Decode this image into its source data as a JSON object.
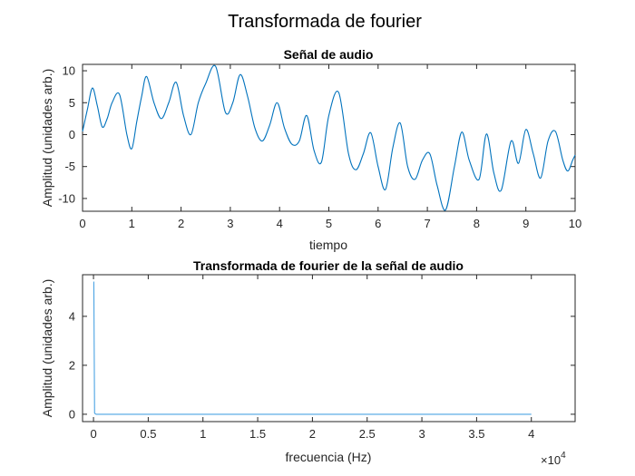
{
  "figure": {
    "suptitle": "Transformada de fourier"
  },
  "chart_data": [
    {
      "type": "line",
      "title": "Señal de audio",
      "xlabel": "tiempo",
      "ylabel": "Amplitud (unidades arb.)",
      "xlim": [
        0,
        10
      ],
      "ylim": [
        -12,
        11
      ],
      "xticks": [
        0,
        1,
        2,
        3,
        4,
        5,
        6,
        7,
        8,
        9,
        10
      ],
      "xtick_labels": [
        "0",
        "1",
        "2",
        "3",
        "4",
        "5",
        "6",
        "7",
        "8",
        "9",
        "10"
      ],
      "yticks": [
        -10,
        -5,
        0,
        5,
        10
      ],
      "ytick_labels": [
        "-10",
        "-5",
        "0",
        "5",
        "10"
      ],
      "grid": false,
      "color": "#0072bd",
      "series": [
        {
          "x": [
            0,
            0.1,
            0.2,
            0.3,
            0.4,
            0.5,
            0.6,
            0.75,
            0.9,
            1.0,
            1.1,
            1.2,
            1.3,
            1.45,
            1.6,
            1.75,
            1.9,
            2.05,
            2.2,
            2.35,
            2.5,
            2.7,
            2.9,
            3.05,
            3.2,
            3.35,
            3.5,
            3.65,
            3.8,
            3.95,
            4.1,
            4.25,
            4.4,
            4.55,
            4.7,
            4.85,
            5.0,
            5.2,
            5.4,
            5.55,
            5.7,
            5.85,
            6.0,
            6.15,
            6.3,
            6.45,
            6.6,
            6.75,
            6.9,
            7.05,
            7.2,
            7.37,
            7.55,
            7.7,
            7.85,
            8.05,
            8.2,
            8.35,
            8.5,
            8.7,
            8.85,
            9.0,
            9.15,
            9.3,
            9.45,
            9.6,
            9.75,
            9.85,
            9.95,
            10.0
          ],
          "y": [
            0.5,
            4,
            7.3,
            4.5,
            1.2,
            2.5,
            5,
            6.3,
            0,
            -2.2,
            2,
            6,
            9.1,
            5,
            2.5,
            5,
            8.2,
            3,
            0,
            5,
            8,
            10.7,
            3.5,
            5,
            9.4,
            6,
            1,
            -1,
            1.5,
            5,
            1,
            -1.5,
            -1,
            3,
            -2.5,
            -4.3,
            3,
            6.6,
            -3,
            -5.5,
            -3,
            0.3,
            -5,
            -8.6,
            -2,
            1.8,
            -5,
            -7,
            -4,
            -3,
            -8,
            -11.8,
            -5,
            0.4,
            -4,
            -7,
            0.1,
            -6,
            -8.7,
            -1,
            -4.5,
            0.8,
            -3,
            -6.8,
            -1,
            0.5,
            -4,
            -5.7,
            -4,
            -3.2
          ]
        }
      ]
    },
    {
      "type": "line",
      "title": "Transformada de fourier de la señal de audio",
      "xlabel": "frecuencia (Hz)",
      "ylabel": "Amplitud (unidades arb.)",
      "xlim": [
        -1000,
        44000
      ],
      "ylim": [
        -0.3,
        5.7
      ],
      "xticks": [
        0,
        5000,
        10000,
        15000,
        20000,
        25000,
        30000,
        35000,
        40000
      ],
      "xtick_labels": [
        "0",
        "0.5",
        "1",
        "1.5",
        "2",
        "2.5",
        "3",
        "3.5",
        "4"
      ],
      "x_exponent_label": "×10",
      "x_exponent_power": "4",
      "yticks": [
        0,
        2,
        4
      ],
      "ytick_labels": [
        "0",
        "2",
        "4"
      ],
      "grid": false,
      "color": "#4ba3e3",
      "series": [
        {
          "x": [
            0,
            30,
            60,
            100,
            150,
            250,
            40000
          ],
          "y": [
            5.4,
            5.4,
            3.0,
            0.05,
            0.02,
            0.0,
            0.0
          ]
        }
      ]
    }
  ]
}
